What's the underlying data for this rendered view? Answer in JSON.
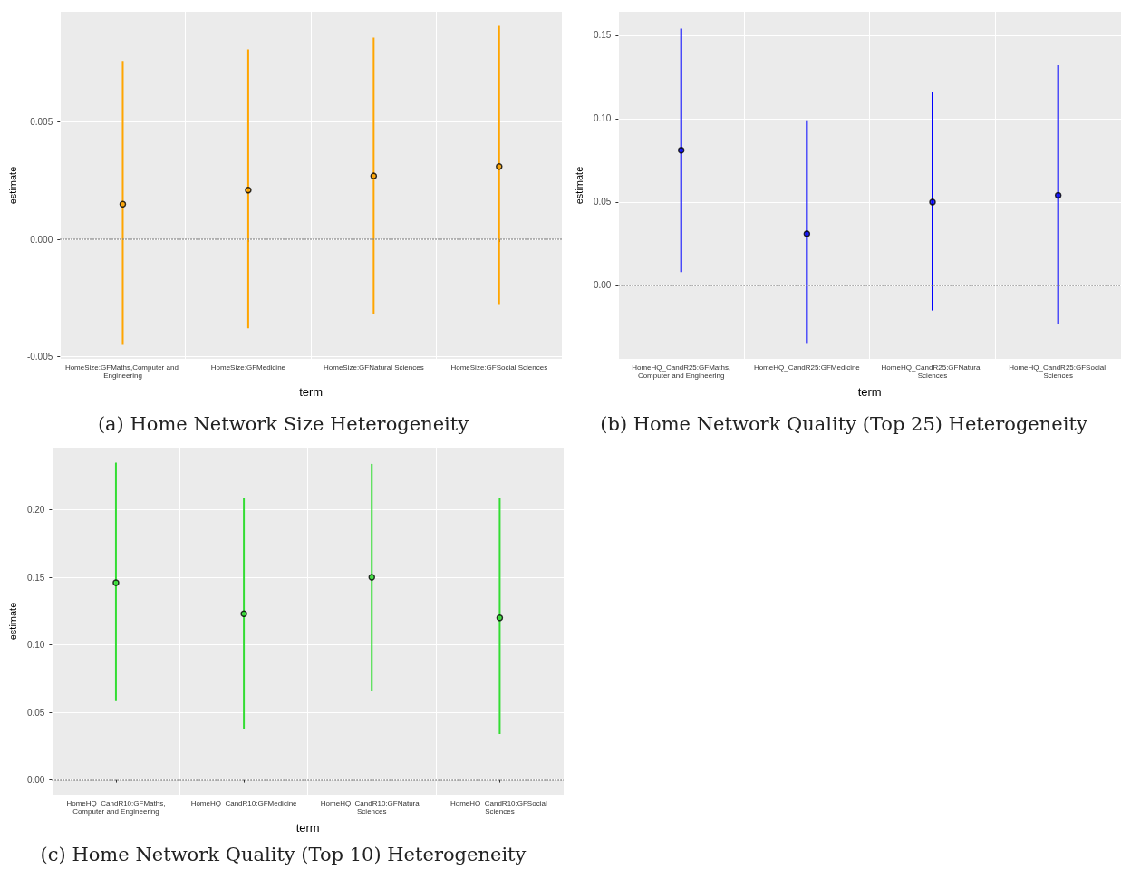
{
  "chart_data": [
    {
      "type": "scatter",
      "title": "(a) Home Network Size Heterogeneity",
      "xlabel": "term",
      "ylabel": "estimate",
      "categories": [
        "HomeSize:GFMaths,Computer and Engineering",
        "HomeSize:GFMedicine",
        "HomeSize:GFNatural Sciences",
        "HomeSize:GFSocial Sciences"
      ],
      "series": [
        {
          "color": "#ffa500",
          "values": [
            0.0015,
            0.0021,
            0.0027,
            0.0031
          ],
          "errors": [
            [
              -0.0045,
              0.0076
            ],
            [
              -0.0038,
              0.0081
            ],
            [
              -0.0032,
              0.0086
            ],
            [
              -0.0028,
              0.0091
            ]
          ]
        }
      ],
      "ylim": [
        -0.0051,
        0.0097
      ],
      "yticks": [
        {
          "value": -0.005,
          "label": "-0.005"
        },
        {
          "value": 0,
          "label": "0.000"
        },
        {
          "value": 0.005,
          "label": "0.005"
        }
      ],
      "ref_lines": [
        {
          "axis": "y",
          "value": 0,
          "line_style": "dotted",
          "color": "#808080"
        }
      ],
      "grid": true,
      "marker": "circle"
    },
    {
      "type": "scatter",
      "title": "(b) Home Network Quality (Top 25) Heterogeneity",
      "xlabel": "term",
      "ylabel": "estimate",
      "categories": [
        "HomeHQ_CandR25:GFMaths,Computer and Engineering",
        "HomeHQ_CandR25:GFMedicine",
        "HomeHQ_CandR25:GFNatural Sciences",
        "HomeHQ_CandR25:GFSocial Sciences"
      ],
      "series": [
        {
          "color": "#0000ff",
          "values": [
            0.081,
            0.031,
            0.05,
            0.054
          ],
          "errors": [
            [
              0.008,
              0.154
            ],
            [
              -0.035,
              0.099
            ],
            [
              -0.015,
              0.116
            ],
            [
              -0.023,
              0.132
            ]
          ]
        }
      ],
      "ylim": [
        -0.044,
        0.164
      ],
      "yticks": [
        {
          "value": 0,
          "label": "0.00"
        },
        {
          "value": 0.05,
          "label": "0.05"
        },
        {
          "value": 0.1,
          "label": "0.10"
        },
        {
          "value": 0.15,
          "label": "0.15"
        }
      ],
      "ref_lines": [
        {
          "axis": "y",
          "value": 0,
          "line_style": "dotted",
          "color": "#808080"
        }
      ],
      "grid": true,
      "marker": "circle"
    },
    {
      "type": "scatter",
      "title": "(c) Home Network Quality (Top 10) Heterogeneity",
      "xlabel": "term",
      "ylabel": "estimate",
      "categories": [
        "HomeHQ_CandR10:GFMaths,Computer and Engineering",
        "HomeHQ_CandR10:GFMedicine",
        "HomeHQ_CandR10:GFNatural Sciences",
        "HomeHQ_CandR10:GFSocial Sciences"
      ],
      "series": [
        {
          "color": "#33dd33",
          "values": [
            0.146,
            0.123,
            0.15,
            0.12
          ],
          "errors": [
            [
              0.059,
              0.235
            ],
            [
              0.038,
              0.209
            ],
            [
              0.066,
              0.234
            ],
            [
              0.034,
              0.209
            ]
          ]
        }
      ],
      "ylim": [
        -0.011,
        0.246
      ],
      "yticks": [
        {
          "value": 0,
          "label": "0.00"
        },
        {
          "value": 0.05,
          "label": "0.05"
        },
        {
          "value": 0.1,
          "label": "0.10"
        },
        {
          "value": 0.15,
          "label": "0.15"
        },
        {
          "value": 0.2,
          "label": "0.20"
        }
      ],
      "ref_lines": [
        {
          "axis": "y",
          "value": 0,
          "line_style": "dotted",
          "color": "#808080"
        }
      ],
      "grid": true,
      "marker": "circle"
    }
  ]
}
